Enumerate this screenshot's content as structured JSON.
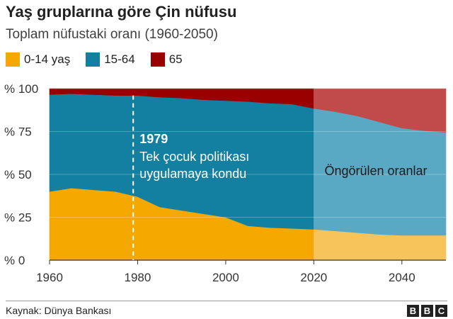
{
  "title": "Yaş gruplarına göre Çin nüfusu",
  "subtitle": "Toplam nüfustaki oranı (1960-2050)",
  "source": "Kaynak: Dünya Bankası",
  "logo": [
    "B",
    "B",
    "C"
  ],
  "colors": {
    "c014": "#f5a800",
    "c1564": "#1380a1",
    "c65": "#990000",
    "c014_proj": "#f7c45c",
    "c1564_proj": "#5aa9c4",
    "c65_proj": "#c14a4a"
  },
  "chart_data": {
    "type": "area",
    "stacked": true,
    "x": [
      1960,
      1965,
      1970,
      1975,
      1980,
      1985,
      1990,
      1995,
      2000,
      2005,
      2010,
      2015,
      2020,
      2025,
      2030,
      2035,
      2040,
      2045,
      2050
    ],
    "series": [
      {
        "name": "0-14 yaş",
        "values": [
          40,
          42,
          41,
          40,
          37,
          31,
          29,
          27,
          25,
          20,
          19,
          18.5,
          18,
          17,
          16,
          15,
          14.5,
          14.5,
          14.5
        ]
      },
      {
        "name": "15-64",
        "values": [
          56.5,
          55,
          55.5,
          56,
          59,
          64,
          65.5,
          66.5,
          68,
          72.5,
          72.5,
          72.5,
          70.5,
          69.5,
          68,
          65.5,
          62.5,
          61,
          60
        ]
      },
      {
        "name": "65",
        "values": [
          3.5,
          3,
          3.5,
          4,
          4,
          5,
          5.5,
          6.5,
          7,
          7.5,
          8.5,
          9,
          11.5,
          13.5,
          16,
          19.5,
          23,
          24.5,
          25.5
        ]
      }
    ],
    "projection_start": 2020,
    "xlim": [
      1960,
      2050
    ],
    "ylim": [
      0,
      100
    ],
    "yticks": [
      0,
      25,
      50,
      75,
      100
    ],
    "ytick_labels": [
      "% 0",
      "% 25",
      "% 50",
      "% 75",
      "% 100"
    ],
    "xticks": [
      1960,
      1980,
      2000,
      2020,
      2040
    ],
    "xtick_labels": [
      "1960",
      "1980",
      "2000",
      "2020",
      "2040"
    ],
    "annotations": {
      "policy_year": 1979,
      "policy_year_label": "1979",
      "policy_line1": "Tek çocuk politikası",
      "policy_line2": "uygulamaya kondu",
      "projection_label": "Öngörülen oranlar"
    },
    "legend_position": "top-left"
  }
}
